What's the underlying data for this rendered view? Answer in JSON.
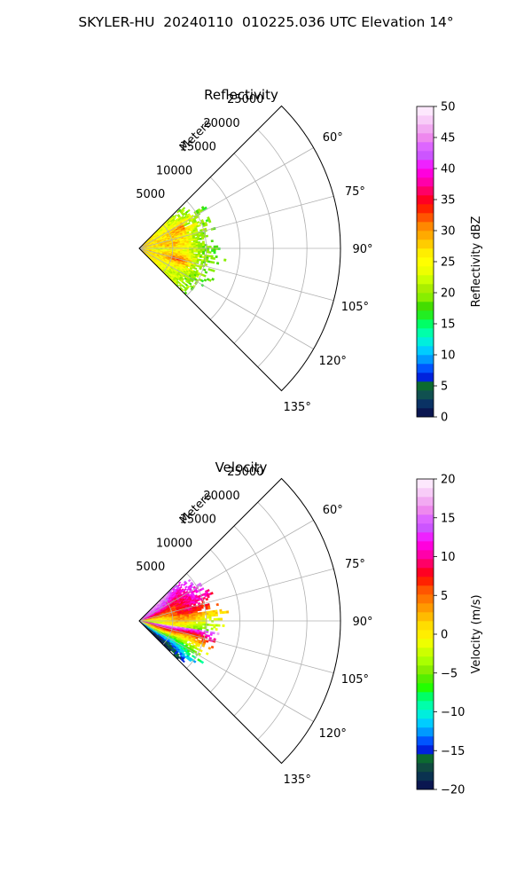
{
  "suptitle": "SKYLER-HU  20240110  010225.036 UTC Elevation 14°",
  "chart_data": [
    {
      "type": "heatmap",
      "title": "Reflectivity",
      "radial_label": "Meters",
      "r_ticks": [
        5000,
        10000,
        15000,
        20000,
        25000
      ],
      "r_tick_labels": [
        "5000",
        "10000",
        "15000",
        "20000",
        "25000"
      ],
      "r_range": [
        0,
        30000
      ],
      "theta_ticks": [
        60,
        75,
        90,
        105,
        120,
        135
      ],
      "theta_tick_labels": [
        "60°",
        "75°",
        "90°",
        "105°",
        "120°",
        "135°"
      ],
      "theta_range": [
        45,
        135
      ],
      "data_extent_m": 11500,
      "grid": true,
      "colorbar": {
        "label": "Reflectivity dBZ",
        "vmin": 0,
        "vmax": 50,
        "ticks": [
          0,
          5,
          10,
          15,
          20,
          25,
          30,
          35,
          40,
          45,
          50
        ],
        "tick_labels": [
          "0",
          "5",
          "10",
          "15",
          "20",
          "25",
          "30",
          "35",
          "40",
          "45",
          "50"
        ],
        "colors": [
          "#0a1650",
          "#0a3264",
          "#105050",
          "#0c6a30",
          "#0022dd",
          "#0055ff",
          "#0099ff",
          "#00ccff",
          "#00eedd",
          "#00ffaa",
          "#00ff66",
          "#22ee22",
          "#44dd00",
          "#88ee00",
          "#aaee00",
          "#ccff00",
          "#eeff00",
          "#ffff00",
          "#ffee00",
          "#ffcc00",
          "#ffaa00",
          "#ff8800",
          "#ff5500",
          "#ff2200",
          "#ff0022",
          "#ff0066",
          "#ff00aa",
          "#ff00dd",
          "#ee22ff",
          "#cc55ff",
          "#dd66ff",
          "#ee88ee",
          "#f2aaf2",
          "#f8ccf8",
          "#fde8fd"
        ]
      }
    },
    {
      "type": "heatmap",
      "title": "Velocity",
      "radial_label": "Meters",
      "r_ticks": [
        5000,
        10000,
        15000,
        20000,
        25000
      ],
      "r_tick_labels": [
        "5000",
        "10000",
        "15000",
        "20000",
        "25000"
      ],
      "r_range": [
        0,
        30000
      ],
      "theta_ticks": [
        60,
        75,
        90,
        105,
        120,
        135
      ],
      "theta_tick_labels": [
        "60°",
        "75°",
        "90°",
        "105°",
        "120°",
        "135°"
      ],
      "theta_range": [
        45,
        135
      ],
      "data_extent_m": 11500,
      "grid": true,
      "colorbar": {
        "label": "Velocity (m/s)",
        "vmin": -20,
        "vmax": 20,
        "ticks": [
          -20,
          -15,
          -10,
          -5,
          0,
          5,
          10,
          15,
          20
        ],
        "tick_labels": [
          "−20",
          "−15",
          "−10",
          "−5",
          "0",
          "5",
          "10",
          "15",
          "20"
        ],
        "colors": [
          "#0a1650",
          "#0a3250",
          "#104a40",
          "#0c6a30",
          "#0022dd",
          "#0055ff",
          "#0099ff",
          "#00ccff",
          "#00eedd",
          "#00ffaa",
          "#00ff66",
          "#22ff00",
          "#55ee00",
          "#88ee00",
          "#aaff00",
          "#ccff00",
          "#eeff00",
          "#ffee00",
          "#ffdd00",
          "#ffbb00",
          "#ff9900",
          "#ff7700",
          "#ff5500",
          "#ff2200",
          "#ff0022",
          "#ff0066",
          "#ff00aa",
          "#ff00dd",
          "#ee22ff",
          "#cc55ff",
          "#dd66ff",
          "#ee88ee",
          "#f2aaf2",
          "#f8ccf8",
          "#fde8fd"
        ]
      }
    }
  ]
}
